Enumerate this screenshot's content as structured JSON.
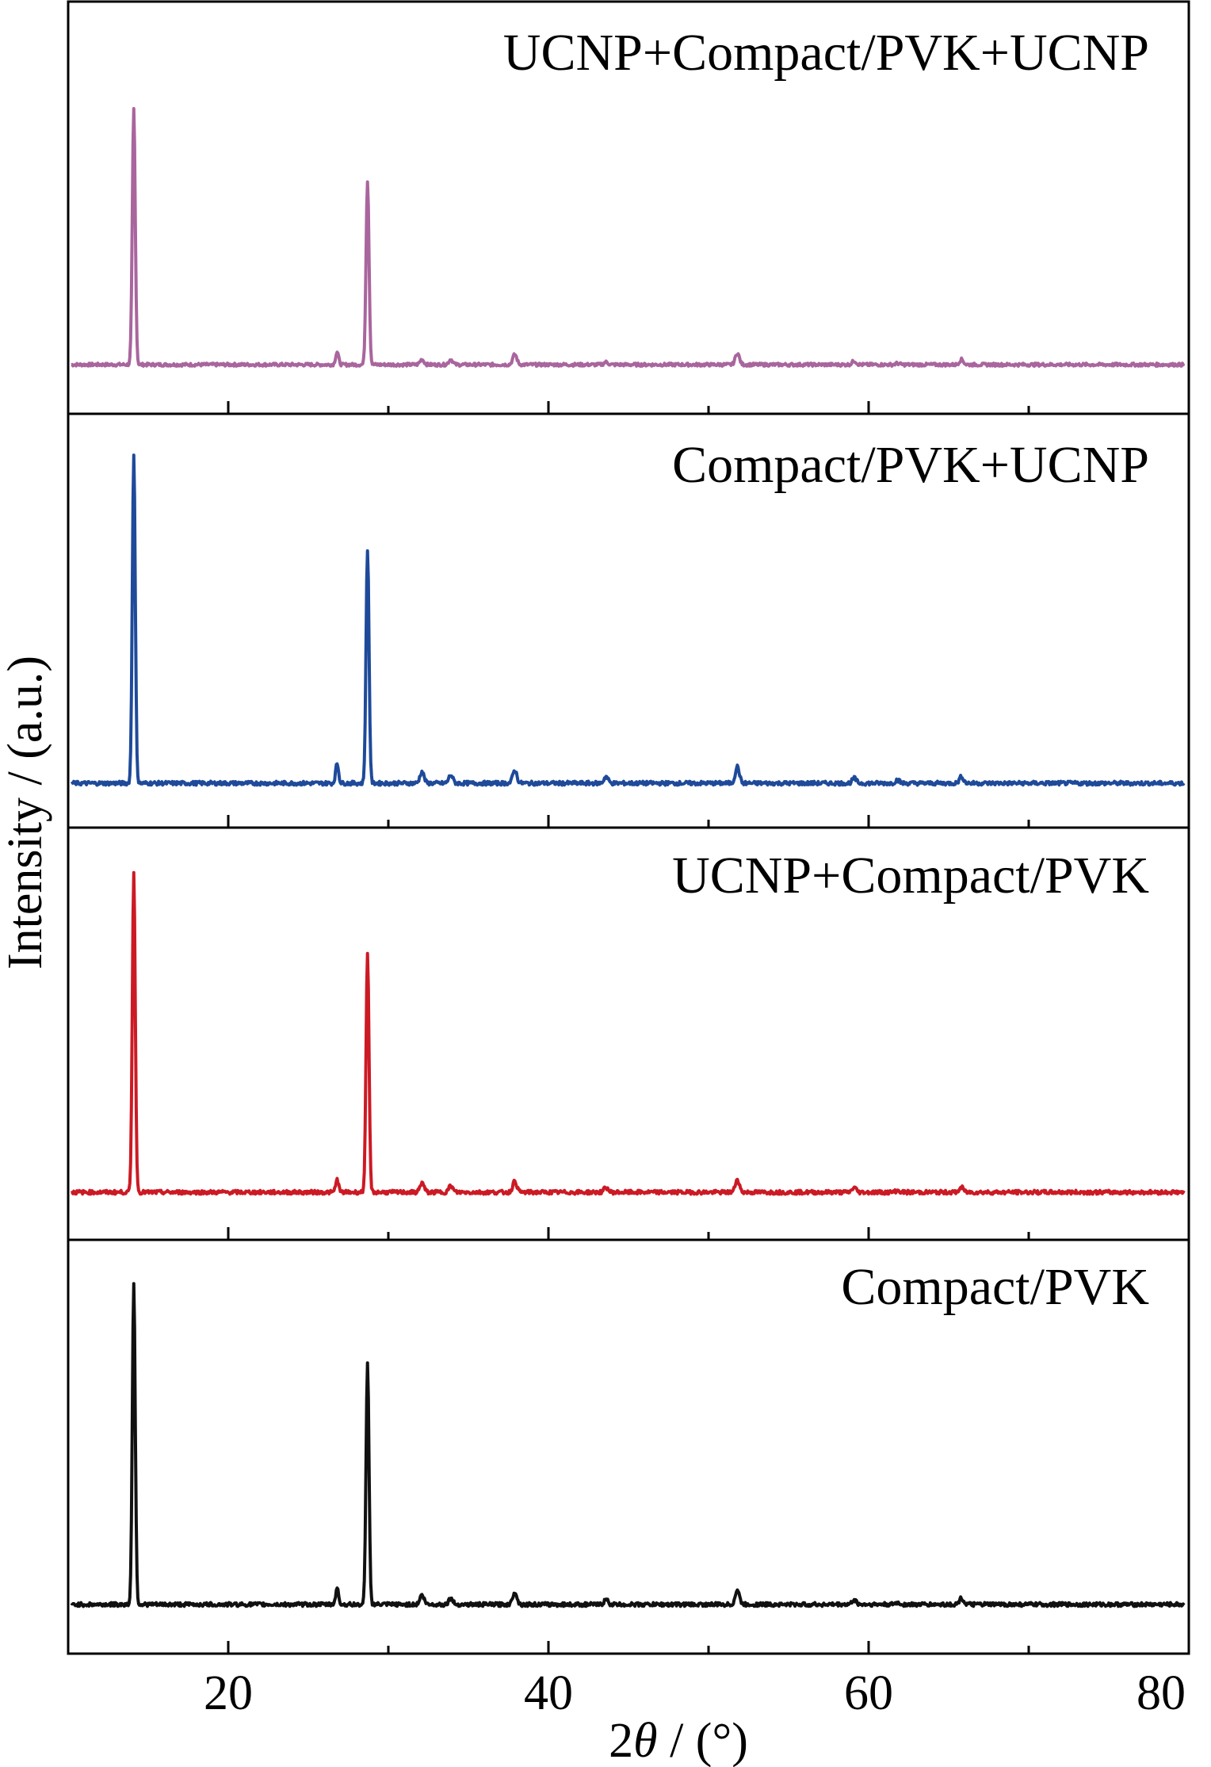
{
  "chart_data": {
    "type": "line",
    "xlabel_prefix": "2",
    "xlabel_symbol": "θ",
    "xlabel_suffix": " / (°)",
    "ylabel": "Intensity / (a.u.)",
    "xlim": [
      10,
      80
    ],
    "xticks": [
      20,
      40,
      60,
      80
    ],
    "xtick_labels": [
      "20",
      "40",
      "60",
      "80"
    ],
    "minor_xticks": [
      30,
      50,
      70
    ],
    "stacked_panels": true,
    "yticks": false,
    "peaks_2theta": [
      14.1,
      26.8,
      28.7,
      32.1,
      33.9,
      37.9,
      43.6,
      51.8,
      59.1,
      61.8,
      65.8
    ],
    "series": [
      {
        "name": "UCNP+Compact/PVK+UCNP",
        "color": "#a9659d",
        "baseline": 0.0,
        "peak_heights": [
          1.0,
          0.05,
          0.72,
          0.02,
          0.02,
          0.04,
          0.01,
          0.045,
          0.015,
          0.005,
          0.02
        ]
      },
      {
        "name": "Compact/PVK+UCNP",
        "color": "#1f4a9a",
        "baseline": 0.0,
        "peak_heights": [
          1.0,
          0.06,
          0.71,
          0.035,
          0.025,
          0.04,
          0.02,
          0.05,
          0.015,
          0.01,
          0.02
        ]
      },
      {
        "name": "UCNP+Compact/PVK",
        "color": "#cc1a24",
        "baseline": 0.0,
        "peak_heights": [
          1.0,
          0.04,
          0.74,
          0.03,
          0.02,
          0.035,
          0.015,
          0.04,
          0.015,
          0.005,
          0.015
        ]
      },
      {
        "name": "Compact/PVK",
        "color": "#111111",
        "baseline": 0.0,
        "peak_heights": [
          1.0,
          0.05,
          0.75,
          0.03,
          0.02,
          0.04,
          0.015,
          0.045,
          0.015,
          0.005,
          0.02
        ]
      }
    ]
  }
}
